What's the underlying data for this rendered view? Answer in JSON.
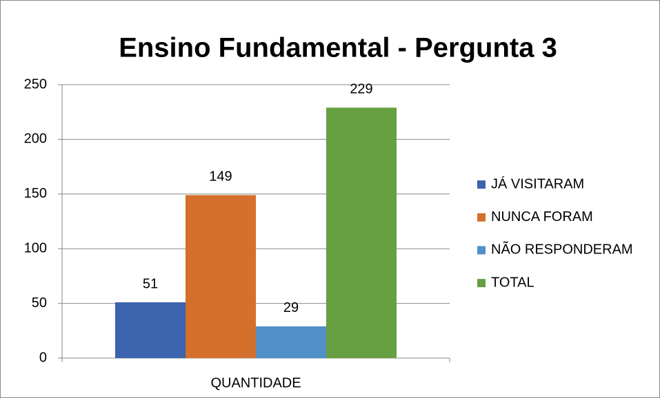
{
  "chart_data": {
    "type": "bar",
    "title": "Ensino Fundamental - Pergunta 3",
    "categories": [
      "QUANTIDADE"
    ],
    "series": [
      {
        "name": "JÁ VISITARAM",
        "color": "#3b63ae",
        "values": [
          51
        ]
      },
      {
        "name": "NUNCA FORAM",
        "color": "#d4702c",
        "values": [
          149
        ]
      },
      {
        "name": "NÃO RESPONDERAM",
        "color": "#5190c8",
        "values": [
          29
        ]
      },
      {
        "name": "TOTAL",
        "color": "#66a040",
        "values": [
          229
        ]
      }
    ],
    "ylim": [
      0,
      250
    ],
    "yticks": [
      0,
      50,
      100,
      150,
      200,
      250
    ],
    "grid": true,
    "legend": "right"
  }
}
